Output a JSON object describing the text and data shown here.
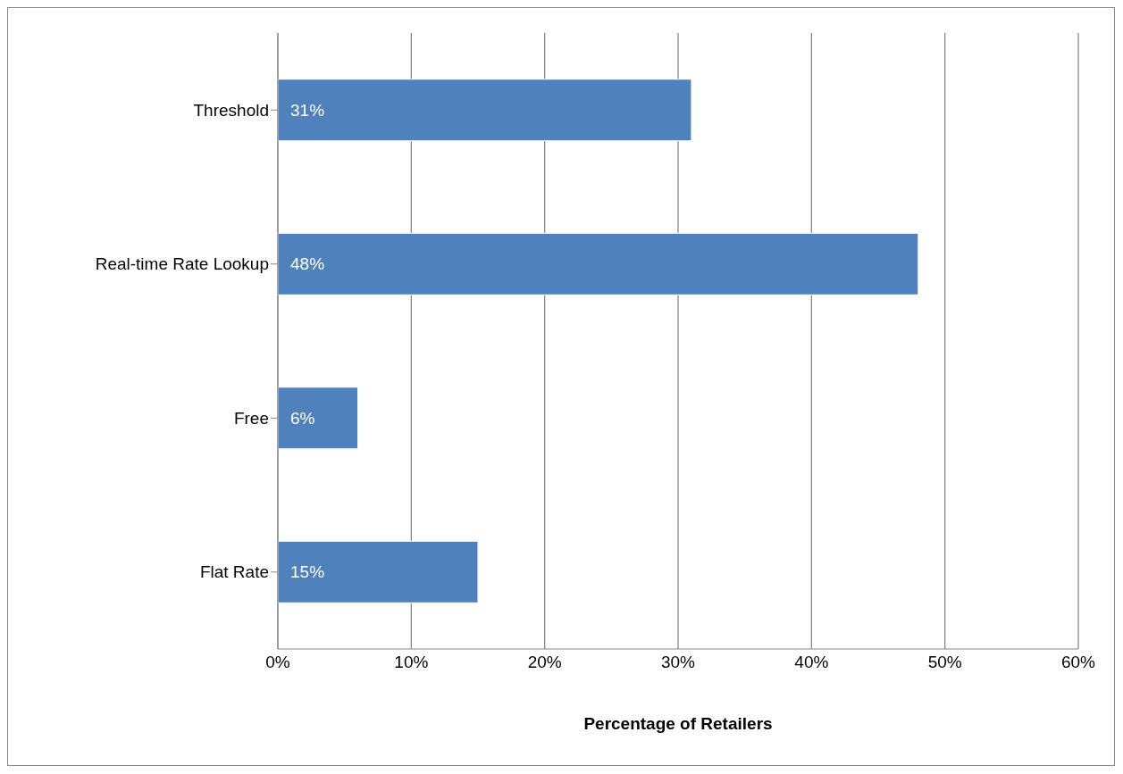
{
  "chart_data": {
    "type": "bar",
    "orientation": "horizontal",
    "xlabel": "Percentage of Retailers",
    "categories": [
      "Threshold",
      "Real-time Rate Lookup",
      "Free",
      "Flat Rate"
    ],
    "values": [
      31,
      48,
      6,
      15
    ],
    "value_labels": [
      "31%",
      "48%",
      "6%",
      "15%"
    ],
    "color": "#4f81bd",
    "xlim": [
      0,
      60
    ],
    "xticks": [
      {
        "value": 0,
        "label": "0%"
      },
      {
        "value": 10,
        "label": "10%"
      },
      {
        "value": 20,
        "label": "20%"
      },
      {
        "value": 30,
        "label": "30%"
      },
      {
        "value": 40,
        "label": "40%"
      },
      {
        "value": 50,
        "label": "50%"
      },
      {
        "value": 60,
        "label": "60%"
      }
    ],
    "grid": "x"
  }
}
